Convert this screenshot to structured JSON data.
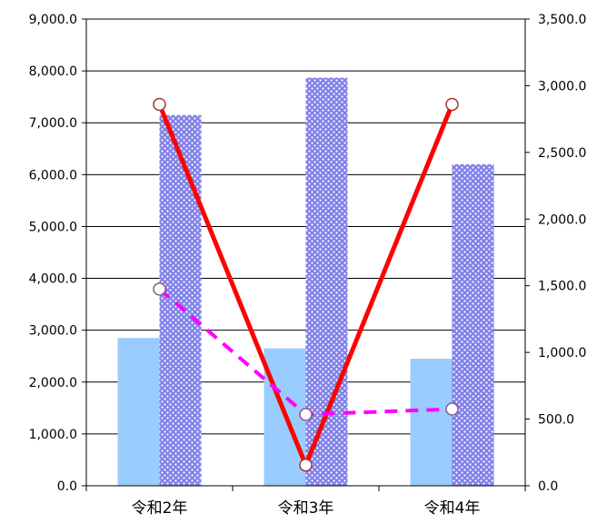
{
  "chart_data": {
    "type": "bar",
    "categories": [
      "令和2年",
      "令和3年",
      "令和4年"
    ],
    "grid": true,
    "legend": "none",
    "y_left": {
      "ylim": [
        0,
        9000
      ],
      "ticks": [
        "0.0",
        "1,000.0",
        "2,000.0",
        "3,000.0",
        "4,000.0",
        "5,000.0",
        "6,000.0",
        "7,000.0",
        "8,000.0",
        "9,000.0"
      ]
    },
    "y_right": {
      "ylim": [
        0,
        3500
      ],
      "ticks": [
        "0.0",
        "500.0",
        "1,000.0",
        "1,500.0",
        "2,000.0",
        "2,500.0",
        "3,000.0",
        "3,500.0"
      ]
    },
    "bar_series": [
      {
        "values": [
          2850,
          2650,
          2450
        ],
        "color": "#99ccff",
        "pattern": "solid",
        "axis": "left"
      },
      {
        "values": [
          7150,
          7870,
          6200
        ],
        "color": "#8080e8",
        "pattern": "dotted",
        "axis": "left"
      }
    ],
    "line_series": [
      {
        "values": [
          2860,
          155,
          2860
        ],
        "color": "#ff0000",
        "style": "solid",
        "axis": "right"
      },
      {
        "values": [
          1475,
          535,
          575
        ],
        "color": "#ff00ff",
        "style": "dashed",
        "axis": "right"
      }
    ]
  }
}
